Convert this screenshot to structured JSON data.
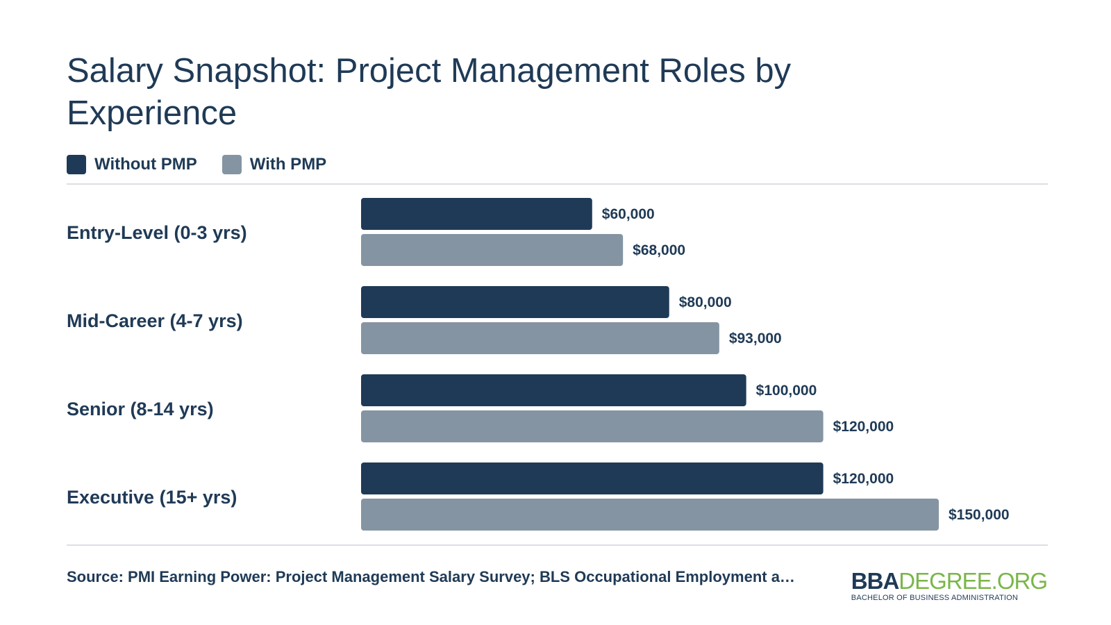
{
  "colors": {
    "without_pmp": "#1f3a56",
    "with_pmp": "#8494a2",
    "text": "#1f3a56",
    "logo_accent": "#7ab648"
  },
  "chart_data": {
    "type": "bar",
    "orientation": "horizontal",
    "title": "Salary Snapshot: Project Management Roles by Experience",
    "categories": [
      "Entry-Level (0-3 yrs)",
      "Mid-Career (4-7 yrs)",
      "Senior (8-14 yrs)",
      "Executive (15+ yrs)"
    ],
    "series": [
      {
        "name": "Without PMP",
        "values": [
          60000,
          80000,
          100000,
          120000
        ],
        "labels": [
          "$60,000",
          "$80,000",
          "$100,000",
          "$120,000"
        ],
        "color": "#1f3a56"
      },
      {
        "name": "With PMP",
        "values": [
          68000,
          93000,
          120000,
          150000
        ],
        "labels": [
          "$68,000",
          "$93,000",
          "$120,000",
          "$150,000"
        ],
        "color": "#8494a2"
      }
    ],
    "xlim": [
      0,
      150000
    ],
    "grid": false,
    "legend_position": "top-left"
  },
  "footer": {
    "source": "Source: PMI Earning Power: Project Management Salary Survey; BLS Occupational Employment a…",
    "logo_bold": "BBA",
    "logo_light": "DEGREE.ORG",
    "logo_tagline": "BACHELOR OF BUSINESS ADMINISTRATION"
  }
}
